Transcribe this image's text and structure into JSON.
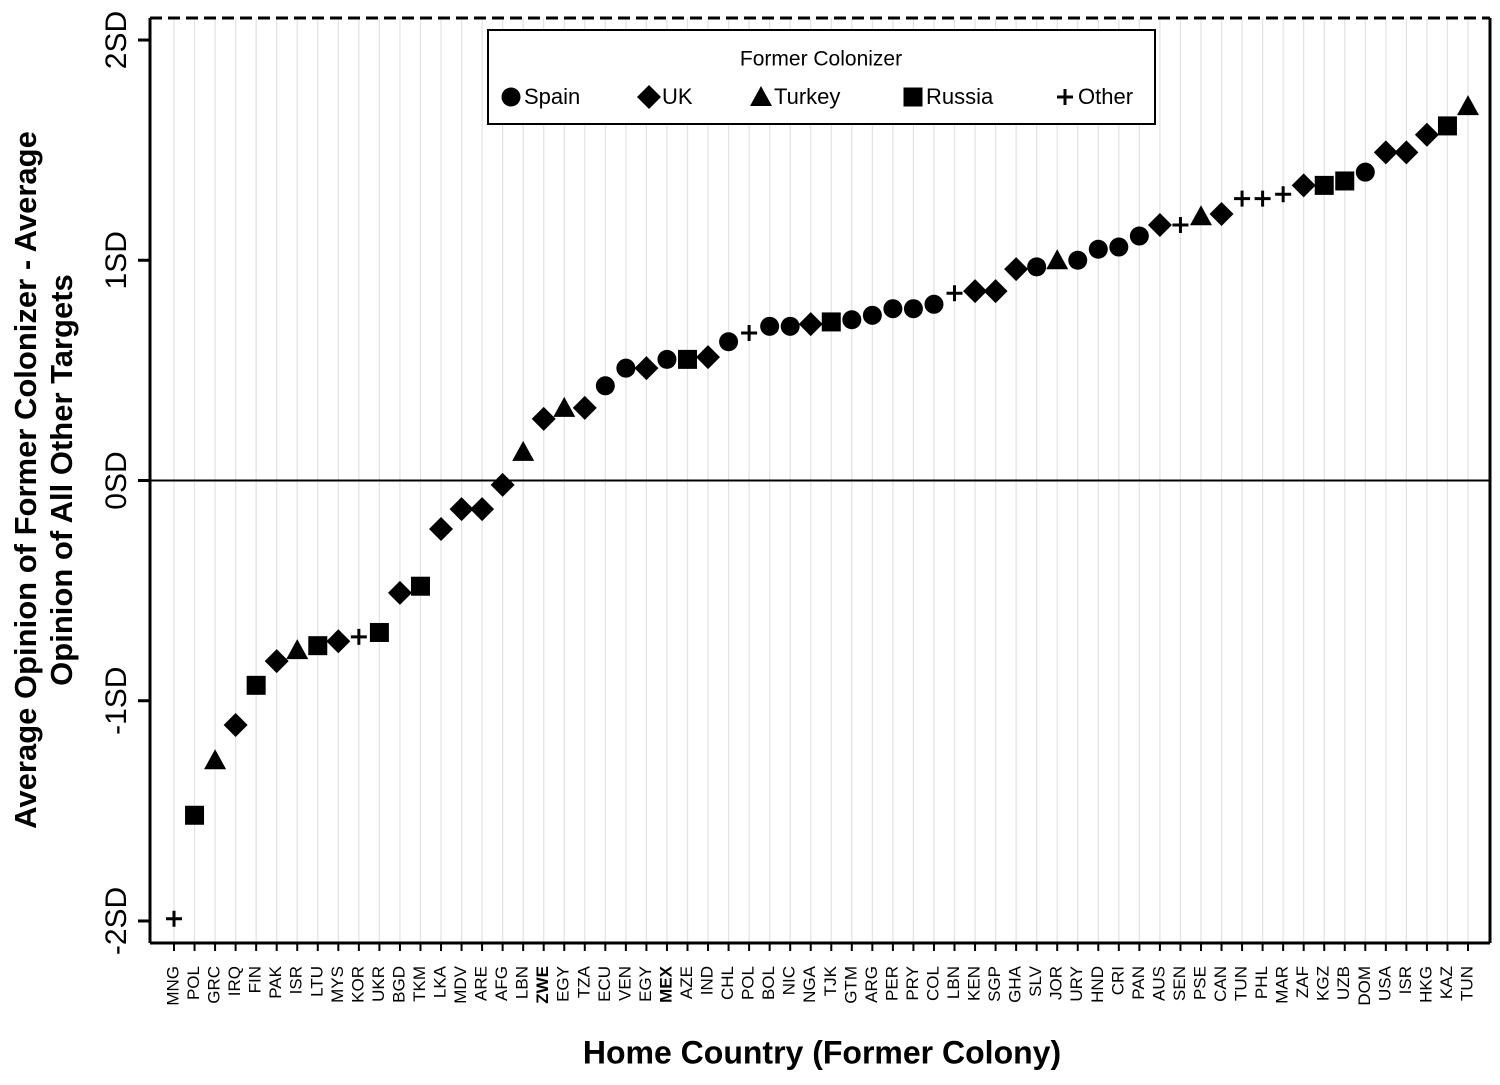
{
  "chart_data": {
    "type": "scatter",
    "x_label": "Home Country (Former Colony)",
    "y_label": [
      "Average Opinion of Former Colonizer - Average",
      "Opinion of All Other Targets"
    ],
    "legend_title": "Former Colonizer",
    "legend_position": "top",
    "x_grid": true,
    "zero_line": true,
    "bold_category_indices": [
      18,
      24
    ],
    "categories": [
      "MNG",
      "POL",
      "GRC",
      "IRQ",
      "FIN",
      "PAK",
      "ISR",
      "LTU",
      "MYS",
      "KOR",
      "UKR",
      "BGD",
      "TKM",
      "LKA",
      "MDV",
      "ARE",
      "AFG",
      "LBN",
      "ZWE",
      "EGY",
      "TZA",
      "ECU",
      "VEN",
      "EGY",
      "MEX",
      "AZE",
      "IND",
      "CHL",
      "POL",
      "BOL",
      "NIC",
      "NGA",
      "TJK",
      "GTM",
      "ARG",
      "PER",
      "PRY",
      "COL",
      "LBN",
      "KEN",
      "SGP",
      "GHA",
      "SLV",
      "JOR",
      "URY",
      "HND",
      "CRI",
      "PAN",
      "AUS",
      "SEN",
      "PSE",
      "CAN",
      "TUN",
      "PHL",
      "MAR",
      "ZAF",
      "KGZ",
      "UZB",
      "DOM",
      "USA",
      "ISR",
      "HKG",
      "KAZ",
      "TUN"
    ],
    "ylim": [
      -2.1,
      2.1
    ],
    "yticks": [
      {
        "value": -2,
        "label": "-2SD"
      },
      {
        "value": -1,
        "label": "-1SD"
      },
      {
        "value": 0,
        "label": "0SD"
      },
      {
        "value": 1,
        "label": "1SD"
      },
      {
        "value": 2,
        "label": "2SD"
      }
    ],
    "series": [
      {
        "name": "Spain",
        "marker": "circle",
        "color": "#000000",
        "values": [
          null,
          null,
          null,
          null,
          null,
          null,
          null,
          null,
          null,
          null,
          null,
          null,
          null,
          null,
          null,
          null,
          null,
          null,
          null,
          null,
          null,
          0.43,
          0.51,
          null,
          0.55,
          null,
          null,
          0.63,
          null,
          0.7,
          0.7,
          null,
          null,
          0.73,
          0.75,
          0.78,
          0.78,
          0.8,
          null,
          null,
          null,
          null,
          0.97,
          null,
          1.0,
          1.05,
          1.06,
          1.11,
          null,
          null,
          null,
          null,
          null,
          null,
          null,
          null,
          null,
          null,
          1.4,
          null,
          null,
          null,
          null,
          null
        ]
      },
      {
        "name": "UK",
        "marker": "diamond",
        "color": "#000000",
        "values": [
          null,
          null,
          null,
          -1.11,
          null,
          -0.82,
          null,
          null,
          -0.73,
          null,
          null,
          -0.51,
          null,
          -0.22,
          -0.13,
          -0.13,
          -0.02,
          null,
          0.28,
          null,
          0.33,
          null,
          null,
          0.51,
          null,
          null,
          0.56,
          null,
          null,
          null,
          null,
          0.71,
          null,
          null,
          null,
          null,
          null,
          null,
          null,
          0.86,
          0.86,
          0.96,
          null,
          null,
          null,
          null,
          null,
          null,
          1.16,
          null,
          null,
          1.21,
          null,
          null,
          null,
          1.34,
          null,
          null,
          null,
          1.49,
          1.49,
          1.57,
          null,
          null
        ]
      },
      {
        "name": "Turkey",
        "marker": "triangle",
        "color": "#000000",
        "values": [
          null,
          null,
          -1.27,
          null,
          null,
          null,
          -0.77,
          null,
          null,
          null,
          null,
          null,
          null,
          null,
          null,
          null,
          null,
          0.13,
          null,
          0.33,
          null,
          null,
          null,
          null,
          null,
          null,
          null,
          null,
          null,
          null,
          null,
          null,
          null,
          null,
          null,
          null,
          null,
          null,
          null,
          null,
          null,
          null,
          null,
          1.0,
          null,
          null,
          null,
          null,
          null,
          null,
          1.2,
          null,
          null,
          null,
          null,
          null,
          null,
          null,
          null,
          null,
          null,
          null,
          null,
          1.7
        ]
      },
      {
        "name": "Russia",
        "marker": "square",
        "color": "#000000",
        "values": [
          null,
          -1.52,
          null,
          null,
          -0.93,
          null,
          null,
          -0.75,
          null,
          null,
          -0.69,
          null,
          -0.48,
          null,
          null,
          null,
          null,
          null,
          null,
          null,
          null,
          null,
          null,
          null,
          null,
          0.55,
          null,
          null,
          null,
          null,
          null,
          null,
          0.72,
          null,
          null,
          null,
          null,
          null,
          null,
          null,
          null,
          null,
          null,
          null,
          null,
          null,
          null,
          null,
          null,
          null,
          null,
          null,
          null,
          null,
          null,
          null,
          1.34,
          1.36,
          null,
          null,
          null,
          null,
          1.61,
          null
        ]
      },
      {
        "name": "Other",
        "marker": "plus",
        "color": "#000000",
        "values": [
          -1.99,
          null,
          null,
          null,
          null,
          null,
          null,
          null,
          null,
          -0.71,
          null,
          null,
          null,
          null,
          null,
          null,
          null,
          null,
          null,
          null,
          null,
          null,
          null,
          null,
          null,
          null,
          null,
          null,
          0.67,
          null,
          null,
          null,
          null,
          null,
          null,
          null,
          null,
          null,
          0.85,
          null,
          null,
          null,
          null,
          null,
          null,
          null,
          null,
          null,
          null,
          1.16,
          null,
          null,
          1.28,
          1.28,
          1.3,
          null,
          null,
          null,
          null,
          null,
          null,
          null,
          null,
          null
        ]
      }
    ]
  }
}
